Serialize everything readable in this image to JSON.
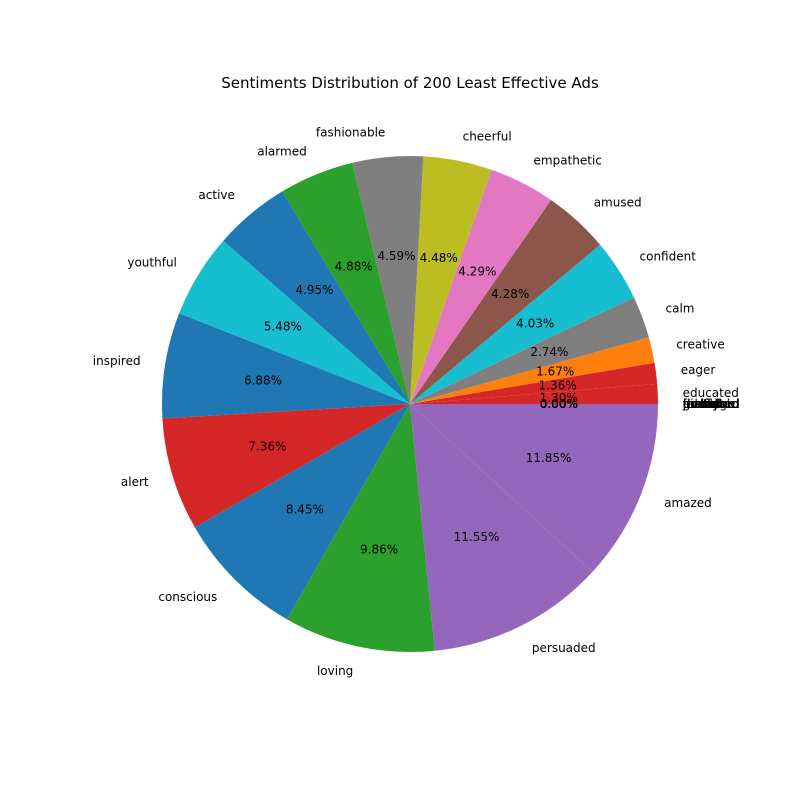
{
  "chart_data": {
    "type": "pie",
    "title": "Sentiments Distribution of 200 Least Effective Ads",
    "start_angle_deg": 0,
    "direction": "counterclockwise",
    "slices": [
      {
        "label": "educated",
        "value": 0.0,
        "pct_text": "0.00%",
        "color": "#ff7f0e"
      },
      {
        "label": "feminine",
        "value": 0.0,
        "pct_text": "0.00%",
        "color": "#2ca02c"
      },
      {
        "label": "grateful",
        "value": 0.0,
        "pct_text": "0.00%",
        "color": "#d62728"
      },
      {
        "label": "proud",
        "value": 0.0,
        "pct_text": "0.00%",
        "color": "#9467bd"
      },
      {
        "label": "jealous",
        "value": 0.0,
        "pct_text": "0.00%",
        "color": "#8c564b"
      },
      {
        "label": "fearful",
        "value": 0.0,
        "pct_text": "0.00%",
        "color": "#e377c2"
      },
      {
        "label": "manly",
        "value": 0.0,
        "pct_text": "0.00%",
        "color": "#7f7f7f"
      },
      {
        "label": "disturbed",
        "value": 0.0,
        "pct_text": "0.00%",
        "color": "#bcbd22"
      },
      {
        "label": "thrifty",
        "value": 0.0,
        "pct_text": "0.00%",
        "color": "#17becf"
      },
      {
        "label": "nostalgic",
        "value": 0.0,
        "pct_text": "0.00%",
        "color": "#1f77b4"
      },
      {
        "label": "educated",
        "value": 1.3,
        "pct_text": "1.30%",
        "color": "#d62728"
      },
      {
        "label": "eager",
        "value": 1.36,
        "pct_text": "1.36%",
        "color": "#d62728"
      },
      {
        "label": "creative",
        "value": 1.67,
        "pct_text": "1.67%",
        "color": "#ff7f0e"
      },
      {
        "label": "calm",
        "value": 2.74,
        "pct_text": "2.74%",
        "color": "#7f7f7f"
      },
      {
        "label": "confident",
        "value": 4.03,
        "pct_text": "4.03%",
        "color": "#17becf"
      },
      {
        "label": "amused",
        "value": 4.28,
        "pct_text": "4.28%",
        "color": "#8c564b"
      },
      {
        "label": "empathetic",
        "value": 4.29,
        "pct_text": "4.29%",
        "color": "#e377c2"
      },
      {
        "label": "cheerful",
        "value": 4.48,
        "pct_text": "4.48%",
        "color": "#bcbd22"
      },
      {
        "label": "fashionable",
        "value": 4.59,
        "pct_text": "4.59%",
        "color": "#7f7f7f"
      },
      {
        "label": "alarmed",
        "value": 4.88,
        "pct_text": "4.88%",
        "color": "#2ca02c"
      },
      {
        "label": "active",
        "value": 4.95,
        "pct_text": "4.95%",
        "color": "#1f77b4"
      },
      {
        "label": "youthful",
        "value": 5.48,
        "pct_text": "5.48%",
        "color": "#17becf"
      },
      {
        "label": "inspired",
        "value": 6.88,
        "pct_text": "6.88%",
        "color": "#1f77b4"
      },
      {
        "label": "alert",
        "value": 7.36,
        "pct_text": "7.36%",
        "color": "#d62728"
      },
      {
        "label": "conscious",
        "value": 8.45,
        "pct_text": "8.45%",
        "color": "#1f77b4"
      },
      {
        "label": "loving",
        "value": 9.86,
        "pct_text": "9.86%",
        "color": "#2ca02c"
      },
      {
        "label": "persuaded",
        "value": 11.55,
        "pct_text": "11.55%",
        "color": "#9467bd"
      },
      {
        "label": "amazed",
        "value": 11.85,
        "pct_text": "11.85%",
        "color": "#9467bd"
      }
    ]
  }
}
